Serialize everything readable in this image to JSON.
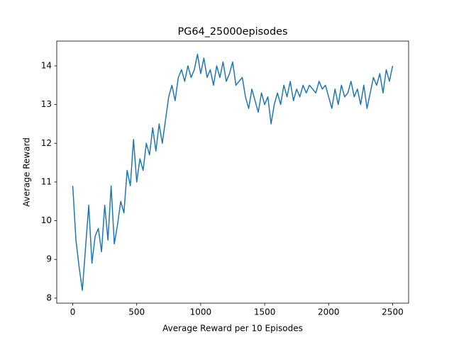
{
  "chart_data": {
    "type": "line",
    "title": "PG64_25000episodes",
    "x_label": "Average Reward per 10 Episodes",
    "y_label": "Average Reward",
    "x": [
      0,
      25,
      50,
      75,
      100,
      125,
      150,
      175,
      200,
      225,
      250,
      275,
      300,
      325,
      350,
      375,
      400,
      425,
      450,
      475,
      500,
      525,
      550,
      575,
      600,
      625,
      650,
      675,
      700,
      725,
      750,
      775,
      800,
      825,
      850,
      875,
      900,
      925,
      950,
      975,
      1000,
      1025,
      1050,
      1075,
      1100,
      1125,
      1150,
      1175,
      1200,
      1225,
      1250,
      1275,
      1300,
      1325,
      1350,
      1375,
      1400,
      1425,
      1450,
      1475,
      1500,
      1525,
      1550,
      1575,
      1600,
      1625,
      1650,
      1675,
      1700,
      1725,
      1750,
      1775,
      1800,
      1825,
      1850,
      1875,
      1900,
      1925,
      1950,
      1975,
      2000,
      2025,
      2050,
      2075,
      2100,
      2125,
      2150,
      2175,
      2200,
      2225,
      2250,
      2275,
      2300,
      2325,
      2350,
      2375,
      2400,
      2425,
      2450,
      2475,
      2500
    ],
    "series": [
      {
        "color": "#1f77b4",
        "values": [
          10.9,
          9.5,
          8.8,
          8.2,
          9.3,
          10.4,
          8.9,
          9.6,
          9.8,
          9.2,
          10.4,
          9.5,
          10.9,
          9.4,
          9.9,
          10.5,
          10.2,
          11.3,
          10.9,
          12.1,
          11.0,
          11.6,
          11.3,
          12.0,
          11.7,
          12.4,
          11.8,
          12.5,
          12.0,
          12.6,
          13.2,
          13.5,
          13.1,
          13.7,
          13.9,
          13.6,
          14.0,
          13.7,
          13.9,
          14.3,
          13.8,
          14.2,
          13.7,
          13.9,
          13.5,
          14.0,
          13.7,
          14.1,
          13.6,
          13.8,
          14.1,
          13.5,
          13.6,
          13.7,
          13.2,
          12.9,
          13.4,
          13.1,
          12.8,
          13.3,
          13.0,
          13.2,
          12.5,
          13.0,
          13.3,
          13.0,
          13.5,
          13.2,
          13.6,
          13.1,
          13.4,
          13.2,
          13.5,
          13.3,
          13.5,
          13.4,
          13.3,
          13.6,
          13.4,
          13.5,
          13.2,
          12.9,
          13.4,
          13.0,
          13.5,
          13.2,
          13.3,
          13.6,
          13.2,
          13.4,
          13.0,
          13.5,
          12.9,
          13.3,
          13.7,
          13.5,
          13.8,
          13.3,
          13.9,
          13.6,
          14.0
        ]
      }
    ],
    "xlim": [
      -125,
      2625
    ],
    "ylim": [
      7.87,
      14.64
    ],
    "xticks": [
      0,
      500,
      1000,
      1500,
      2000,
      2500
    ],
    "yticks": [
      8,
      9,
      10,
      11,
      12,
      13,
      14
    ]
  }
}
